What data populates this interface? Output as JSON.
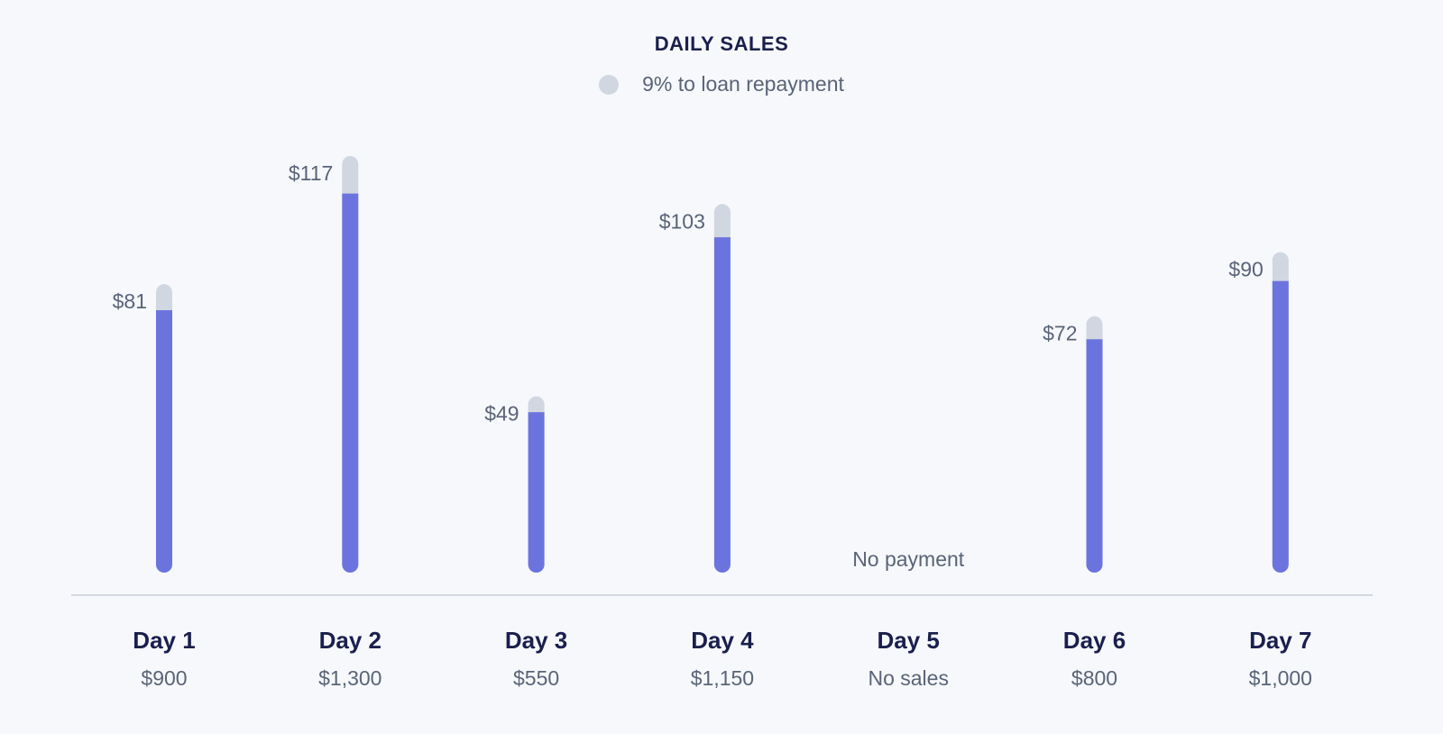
{
  "chart_data": {
    "type": "bar",
    "title": "DAILY SALES",
    "legend": {
      "label": "9% to loan repayment",
      "placement": "top-center"
    },
    "repayment_rate": 0.09,
    "categories": [
      "Day 1",
      "Day 2",
      "Day 3",
      "Day 4",
      "Day 5",
      "Day 6",
      "Day 7"
    ],
    "sales_labels": [
      "$900",
      "$1,300",
      "$550",
      "$1,150",
      "No sales",
      "$800",
      "$1,000"
    ],
    "sales": [
      900,
      1300,
      550,
      1150,
      0,
      800,
      1000
    ],
    "repayment_values": [
      81,
      117,
      49,
      103,
      0,
      72,
      90
    ],
    "repayment_labels": [
      "$81",
      "$117",
      "$49",
      "$103",
      "",
      "$72",
      "$90"
    ],
    "zero_label": "No payment",
    "ylim": [
      0,
      1300
    ],
    "grid": false,
    "colors": {
      "sales_bar": "#6b74de",
      "repayment_bar": "#d1d7e0",
      "baseline": "#d5d9e2",
      "title": "#1a1f4d",
      "label": "#5a6478",
      "category": "#1a1f4d"
    }
  }
}
